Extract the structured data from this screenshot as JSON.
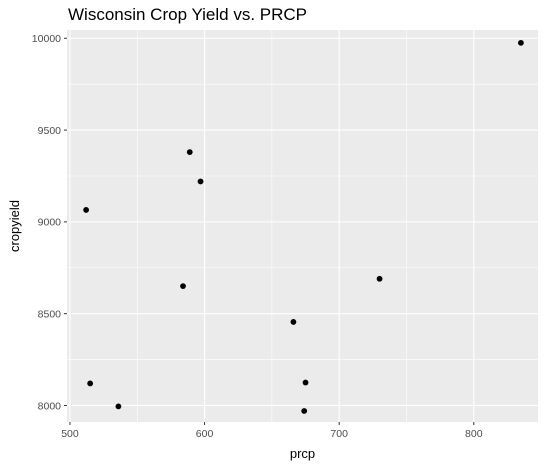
{
  "chart_data": {
    "type": "scatter",
    "title": "Wisconsin Crop Yield vs. PRCP",
    "xlabel": "prcp",
    "ylabel": "cropyield",
    "xlim": [
      497.8,
      847.7
    ],
    "ylim": [
      7910,
      10045
    ],
    "x_ticks": [
      500,
      600,
      700,
      800
    ],
    "y_ticks": [
      8000,
      8500,
      9000,
      9500,
      10000
    ],
    "x_tick_labels": [
      "500",
      "600",
      "700",
      "800"
    ],
    "y_tick_labels": [
      "8000",
      "8500",
      "9000",
      "9500",
      "10000"
    ],
    "grid": true,
    "points": [
      {
        "x": 835,
        "y": 9975
      },
      {
        "x": 589,
        "y": 9380
      },
      {
        "x": 597,
        "y": 9220
      },
      {
        "x": 512,
        "y": 9065
      },
      {
        "x": 730,
        "y": 8690
      },
      {
        "x": 584,
        "y": 8650
      },
      {
        "x": 666,
        "y": 8455
      },
      {
        "x": 515,
        "y": 8120
      },
      {
        "x": 675,
        "y": 8125
      },
      {
        "x": 536,
        "y": 7995
      },
      {
        "x": 674,
        "y": 7970
      }
    ],
    "colors": {
      "panel": "#ebebeb",
      "grid_major": "#ffffff",
      "point": "#000000",
      "tick": "#333333"
    }
  }
}
